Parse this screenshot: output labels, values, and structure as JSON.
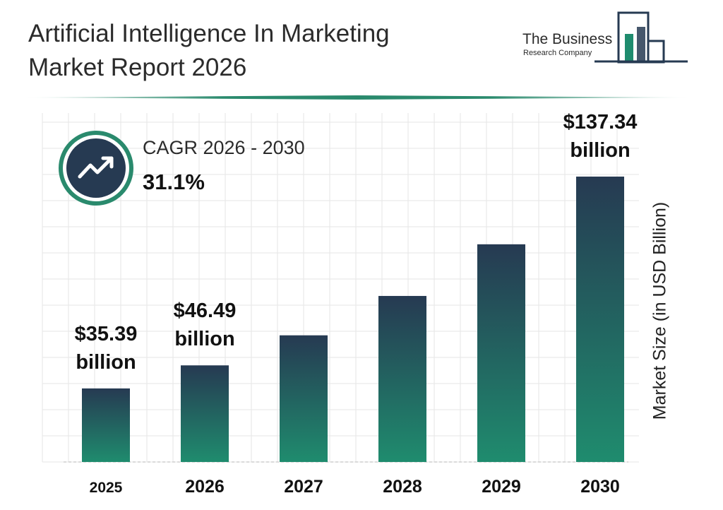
{
  "header": {
    "title_line1": "Artificial Intelligence In Marketing",
    "title_line2": "Market Report 2026"
  },
  "logo": {
    "name": "The Business",
    "tagline": "Research Company"
  },
  "cagr": {
    "label": "CAGR 2026 - 2030",
    "value": "31.1%",
    "icon": "trend-up-icon"
  },
  "colors": {
    "bar_top": "#263a52",
    "bar_bottom": "#1f8c6e",
    "accent": "#2a8a6d",
    "grid": "#e6e6e6"
  },
  "chart_data": {
    "type": "bar",
    "categories": [
      "2025",
      "2026",
      "2027",
      "2028",
      "2029",
      "2030"
    ],
    "values": [
      35.39,
      46.49,
      60.95,
      79.9,
      104.76,
      137.34
    ],
    "data_labels": [
      {
        "index": 0,
        "line1": "$35.39",
        "line2": "billion"
      },
      {
        "index": 1,
        "line1": "$46.49",
        "line2": "billion"
      },
      {
        "index": 5,
        "line1": "$137.34",
        "line2": "billion"
      }
    ],
    "ylabel": "Market Size (in USD Billion)",
    "ylim": [
      0,
      150
    ],
    "grid": true,
    "legend": "none"
  }
}
